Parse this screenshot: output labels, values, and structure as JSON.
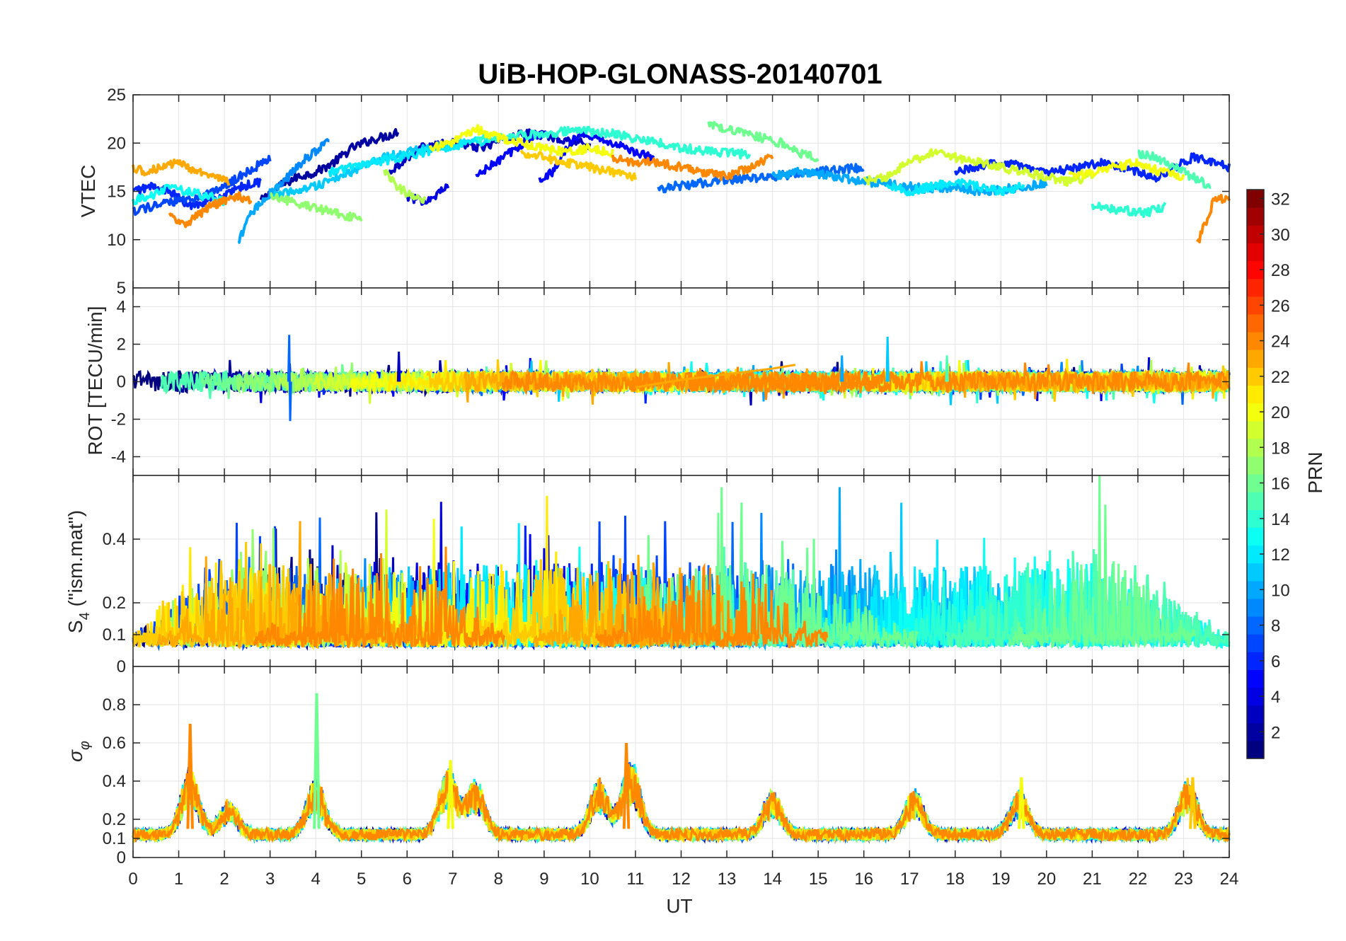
{
  "chart_data": [
    {
      "type": "line",
      "title": "UiB-HOP-GLONASS-20140701",
      "panel": "vtec",
      "ylabel": "VTEC",
      "xlabel": "",
      "xlim": [
        0,
        24
      ],
      "ylim": [
        5,
        25
      ],
      "yticks": [
        5,
        10,
        15,
        20,
        25
      ],
      "ytick_labels": [
        "5",
        "10",
        "15",
        "20",
        "25"
      ],
      "grid": true,
      "series_description": "One line per GLONASS satellite (PRN 1-24), colored by PRN; VTEC mostly 12-22 TECU",
      "series": [
        {
          "prn": 2,
          "x": [
            2.8,
            3.2,
            3.6,
            4.0,
            4.4,
            4.8,
            5.2,
            5.6,
            5.8
          ],
          "y": [
            14,
            15.5,
            16.5,
            17.0,
            18.0,
            19.5,
            20.3,
            20.8,
            21.2
          ]
        },
        {
          "prn": 3,
          "x": [
            5.6,
            6.0,
            6.3,
            6.6,
            6.9,
            7.2,
            7.6,
            8.0,
            8.4,
            8.8,
            9.2,
            9.6,
            10.0
          ],
          "y": [
            17,
            18.5,
            19.5,
            19.8,
            19.9,
            20.0,
            19.5,
            20.2,
            20.8,
            21.0,
            20.6,
            20.2,
            19.8
          ]
        },
        {
          "prn": 4,
          "x": [
            6.0,
            6.3,
            6.6,
            6.9
          ],
          "y": [
            14.5,
            14.0,
            14.5,
            15.5
          ]
        },
        {
          "prn": 5,
          "x": [
            7.5,
            7.8,
            8.1,
            8.4,
            8.7,
            9.0
          ],
          "y": [
            16.5,
            17.5,
            18.5,
            19.5,
            20.5,
            21.0
          ]
        },
        {
          "prn": 5,
          "x": [
            8.9,
            9.2,
            9.5,
            9.8,
            10.2,
            10.6,
            11.0,
            11.4
          ],
          "y": [
            16.3,
            17.0,
            19.5,
            21.2,
            20.5,
            19.8,
            19.0,
            18.5
          ]
        },
        {
          "prn": 6,
          "x": [
            0.0,
            0.4,
            0.8,
            1.2,
            1.6,
            2.0,
            2.4,
            2.8
          ],
          "y": [
            15,
            15.5,
            15.0,
            13.5,
            14.0,
            14.5,
            15.5,
            16.0
          ]
        },
        {
          "prn": 6,
          "x": [
            18.0,
            18.4,
            18.8,
            19.2,
            19.6,
            20.0,
            20.4,
            20.8,
            21.2,
            21.6,
            22.0,
            22.4,
            22.8,
            23.2,
            23.6,
            24.0
          ],
          "y": [
            17.0,
            17.5,
            17.8,
            18.0,
            17.5,
            17.0,
            17.2,
            17.5,
            18.0,
            17.5,
            17.0,
            16.5,
            17.5,
            18.5,
            18.0,
            17.5
          ]
        },
        {
          "prn": 7,
          "x": [
            0.0,
            0.5,
            1.0,
            1.5,
            2.0,
            2.5,
            3.0
          ],
          "y": [
            13.0,
            13.5,
            14.0,
            14.5,
            15.5,
            17.0,
            18.5
          ]
        },
        {
          "prn": 8,
          "x": [
            11.5,
            12.0,
            12.5,
            13.0,
            13.5,
            14.0,
            14.5,
            15.0,
            15.5,
            16.0
          ],
          "y": [
            15.3,
            15.6,
            15.9,
            16.2,
            16.3,
            16.5,
            16.8,
            17.0,
            17.3,
            17.5
          ]
        },
        {
          "prn": 9,
          "x": [
            3.2,
            3.5,
            3.8,
            4.1,
            4.3
          ],
          "y": [
            15.5,
            17.0,
            18.5,
            19.5,
            20.3
          ]
        },
        {
          "prn": 10,
          "x": [
            2.3,
            2.5,
            2.8,
            3.2
          ],
          "y": [
            9.5,
            12.0,
            14.0,
            15.5
          ]
        },
        {
          "prn": 10,
          "x": [
            14.0,
            14.5,
            15.0,
            15.5,
            16.0,
            16.5,
            17.0,
            17.5,
            18.0,
            18.5,
            19.0,
            19.5,
            20.0
          ],
          "y": [
            16.5,
            17.0,
            16.8,
            16.5,
            16.0,
            15.8,
            15.5,
            15.2,
            15.5,
            15.0,
            15.2,
            15.5,
            15.8
          ]
        },
        {
          "prn": 11,
          "x": [
            3.0,
            3.5,
            4.0,
            4.5,
            5.0,
            5.5,
            6.0,
            6.5,
            7.0
          ],
          "y": [
            14.5,
            15.0,
            15.5,
            16.5,
            17.5,
            18.5,
            19.0,
            19.5,
            20.0
          ]
        },
        {
          "prn": 12,
          "x": [
            4.3,
            4.8,
            5.3,
            5.8,
            6.3,
            6.8,
            7.3,
            7.8
          ],
          "y": [
            17.0,
            17.5,
            18.0,
            18.5,
            19.0,
            19.5,
            20.0,
            20.3
          ]
        },
        {
          "prn": 12,
          "x": [
            16.5,
            17.0,
            17.5,
            18.0,
            18.5,
            19.0,
            19.5
          ],
          "y": [
            15.5,
            15.0,
            15.5,
            16.0,
            15.5,
            15.0,
            15.5
          ]
        },
        {
          "prn": 13,
          "x": [
            0.0,
            0.4,
            0.8,
            1.2,
            1.6,
            2.0
          ],
          "y": [
            14.0,
            14.5,
            15.5,
            15.0,
            14.5,
            14.0
          ]
        },
        {
          "prn": 14,
          "x": [
            7.5,
            8.0,
            8.5,
            9.0,
            9.5,
            10.0,
            10.5,
            11.0,
            11.5,
            12.0,
            12.5,
            13.0,
            13.5
          ],
          "y": [
            20.3,
            20.5,
            20.8,
            21.0,
            21.2,
            21.2,
            21.0,
            20.5,
            20.0,
            19.5,
            19.2,
            19.0,
            18.8
          ]
        },
        {
          "prn": 14,
          "x": [
            21.0,
            21.4,
            21.8,
            22.2,
            22.6
          ],
          "y": [
            13.5,
            13.2,
            13.0,
            12.8,
            13.5
          ]
        },
        {
          "prn": 15,
          "x": [
            22.0,
            22.4,
            22.8,
            23.2,
            23.6
          ],
          "y": [
            19.0,
            18.5,
            17.5,
            16.5,
            15.5
          ]
        },
        {
          "prn": 16,
          "x": [
            12.6,
            13.0,
            13.4,
            13.8,
            14.2,
            14.6,
            15.0
          ],
          "y": [
            22.0,
            21.5,
            21.0,
            20.5,
            20.0,
            19.0,
            18.5
          ]
        },
        {
          "prn": 17,
          "x": [
            3.0,
            3.4,
            3.8,
            4.2,
            4.6,
            5.0
          ],
          "y": [
            14.5,
            14.0,
            13.5,
            13.0,
            12.5,
            12.3
          ]
        },
        {
          "prn": 18,
          "x": [
            5.5,
            5.8,
            6.1,
            6.4
          ],
          "y": [
            17.0,
            15.5,
            14.5,
            14.0
          ]
        },
        {
          "prn": 19,
          "x": [
            16.0,
            16.5,
            17.0,
            17.5,
            18.0,
            18.5,
            19.0,
            19.5,
            20.0,
            20.5,
            21.0
          ],
          "y": [
            16.0,
            16.5,
            18.0,
            19.0,
            18.5,
            18.0,
            17.5,
            17.0,
            16.5,
            16.0,
            16.5
          ]
        },
        {
          "prn": 20,
          "x": [
            6.5,
            7.0,
            7.5,
            8.0,
            8.5,
            9.0,
            9.5,
            10.0,
            10.5
          ],
          "y": [
            19.5,
            20.0,
            21.5,
            20.5,
            20.0,
            19.5,
            19.0,
            19.5,
            19.0
          ]
        },
        {
          "prn": 20,
          "x": [
            20.5,
            21.0,
            21.5,
            22.0,
            22.5,
            23.0
          ],
          "y": [
            16.5,
            17.0,
            17.5,
            18.0,
            17.0,
            16.5
          ]
        },
        {
          "prn": 22,
          "x": [
            8.5,
            9.0,
            9.5,
            10.0,
            10.5,
            11.0
          ],
          "y": [
            19.0,
            18.5,
            18.0,
            17.5,
            17.0,
            16.5
          ]
        },
        {
          "prn": 23,
          "x": [
            0.0,
            0.3,
            0.6,
            0.9,
            1.2,
            1.5,
            1.8,
            2.1
          ],
          "y": [
            17.5,
            17.0,
            17.5,
            18.0,
            17.5,
            17.0,
            16.5,
            16.0
          ]
        },
        {
          "prn": 24,
          "x": [
            0.8,
            1.1,
            1.4,
            1.7,
            2.0,
            2.3,
            2.6
          ],
          "y": [
            12.5,
            11.5,
            12.5,
            13.5,
            14.0,
            14.5,
            14.0
          ]
        },
        {
          "prn": 24,
          "x": [
            10.5,
            11.0,
            11.5,
            12.0,
            12.5,
            13.0,
            13.5,
            14.0
          ],
          "y": [
            18.5,
            18.0,
            18.0,
            17.5,
            17.0,
            16.5,
            17.5,
            18.5
          ]
        },
        {
          "prn": 24,
          "x": [
            23.3,
            23.5,
            23.7,
            24.0
          ],
          "y": [
            9.5,
            12.0,
            14.5,
            14.0
          ]
        }
      ]
    },
    {
      "type": "line",
      "panel": "rot",
      "ylabel": "ROT [TECU/min]",
      "xlabel": "",
      "xlim": [
        0,
        24
      ],
      "ylim": [
        -5,
        5
      ],
      "yticks": [
        -4,
        -2,
        0,
        2,
        4
      ],
      "ytick_labels": [
        "-4",
        "-2",
        "0",
        "2",
        "4"
      ],
      "grid": true,
      "series_description": "Rate of TEC per satellite, values mostly within -1..1 with a few spikes",
      "series": [
        {
          "prn": 8,
          "x": [
            3.4,
            3.42,
            3.44,
            3.46
          ],
          "y": [
            0,
            2.5,
            -2.1,
            0
          ]
        },
        {
          "prn": 11,
          "x": [
            16.5,
            16.52,
            16.54
          ],
          "y": [
            0,
            2.4,
            0
          ]
        },
        {
          "prn": 3,
          "x": [
            5.8,
            5.82,
            5.84
          ],
          "y": [
            0,
            1.6,
            0
          ]
        },
        {
          "prn": 10,
          "x": [
            15.5,
            15.52,
            15.54
          ],
          "y": [
            0,
            1.4,
            0
          ]
        },
        {
          "prn": 15,
          "x": [
            17.8,
            17.82,
            17.84
          ],
          "y": [
            0,
            1.4,
            0
          ]
        },
        {
          "prn": 23,
          "x": [
            11.0,
            12.0,
            13.0,
            14.0,
            14.5
          ],
          "y": [
            -0.3,
            0.1,
            0.4,
            0.7,
            0.9
          ]
        }
      ]
    },
    {
      "type": "line",
      "panel": "s4",
      "ylabel": "S4 (\"ism.mat\")",
      "ylabel_main": "S",
      "ylabel_sub": "4",
      "ylabel_rest": " (\"ism.mat\")",
      "xlabel": "",
      "xlim": [
        0,
        24
      ],
      "ylim": [
        0,
        0.6
      ],
      "yticks": [
        0,
        0.1,
        0.2,
        0.4
      ],
      "ytick_labels": [
        "0",
        "0.1",
        "0.2",
        "0.4"
      ],
      "grid": true,
      "series_description": "Amplitude scintillation index per satellite, baseline ~0.05-0.1 with bursts up to ~0.6",
      "series": []
    },
    {
      "type": "line",
      "panel": "sigma_phi",
      "ylabel": "σφ",
      "ylabel_main": "σ",
      "ylabel_sub": "φ",
      "xlabel": "UT",
      "xlim": [
        0,
        24
      ],
      "ylim": [
        0,
        1
      ],
      "xticks": [
        0,
        1,
        2,
        3,
        4,
        5,
        6,
        7,
        8,
        9,
        10,
        11,
        12,
        13,
        14,
        15,
        16,
        17,
        18,
        19,
        20,
        21,
        22,
        23,
        24
      ],
      "xtick_labels": [
        "0",
        "1",
        "2",
        "3",
        "4",
        "5",
        "6",
        "7",
        "8",
        "9",
        "10",
        "11",
        "12",
        "13",
        "14",
        "15",
        "16",
        "17",
        "18",
        "19",
        "20",
        "21",
        "22",
        "23",
        "24"
      ],
      "yticks": [
        0,
        0.1,
        0.2,
        0.4,
        0.6,
        0.8
      ],
      "ytick_labels": [
        "0",
        "0.1",
        "0.2",
        "0.4",
        "0.6",
        "0.8"
      ],
      "grid": true,
      "series_description": "Phase scintillation index per satellite, baseline ~0.1 with peaks 0.7 (~1.2 UT) and 0.86 (~4 UT)",
      "peaks": [
        {
          "prn": 24,
          "x": 1.25,
          "y": 0.7
        },
        {
          "prn": 16,
          "x": 4.02,
          "y": 0.86
        },
        {
          "prn": 20,
          "x": 6.95,
          "y": 0.51
        },
        {
          "prn": 24,
          "x": 10.8,
          "y": 0.6
        },
        {
          "prn": 20,
          "x": 19.45,
          "y": 0.42
        },
        {
          "prn": 22,
          "x": 23.2,
          "y": 0.42
        }
      ]
    },
    {
      "type": "colorbar",
      "label": "PRN",
      "colormap": "jet",
      "clim": [
        1,
        32
      ],
      "ticks": [
        2,
        4,
        6,
        8,
        10,
        12,
        14,
        16,
        18,
        20,
        22,
        24,
        26,
        28,
        30,
        32
      ],
      "tick_labels": [
        "2",
        "4",
        "6",
        "8",
        "10",
        "12",
        "14",
        "16",
        "18",
        "20",
        "22",
        "24",
        "26",
        "28",
        "30",
        "32"
      ]
    }
  ]
}
